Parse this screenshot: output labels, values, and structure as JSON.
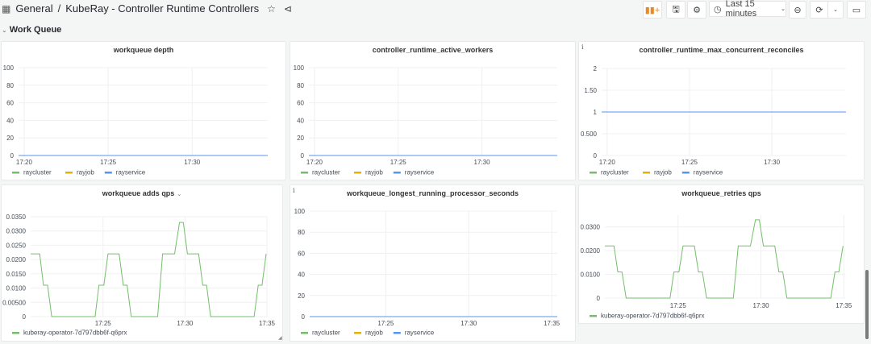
{
  "header": {
    "folder": "General",
    "separator": "/",
    "title": "KubeRay - Controller Runtime Controllers",
    "time_range": "Last 15 minutes",
    "icons": [
      "apps-icon",
      "star-icon",
      "share-icon",
      "add-panel-icon",
      "save-icon",
      "settings-icon",
      "clock-icon",
      "zoom-out-icon",
      "refresh-icon",
      "chevron-down-icon",
      "tv-mode-icon"
    ]
  },
  "row": {
    "title": "Work Queue"
  },
  "colors": {
    "raycluster": "#73BF69",
    "rayjob": "#E0B400",
    "rayservice": "#5794F2",
    "kuberay-operator-7d797dbb6f-q6prx": "#73BF69"
  },
  "panels": [
    {
      "title": "workqueue depth",
      "info": false,
      "menu": false
    },
    {
      "title": "controller_runtime_active_workers",
      "info": false,
      "menu": false
    },
    {
      "title": "controller_runtime_max_concurrent_reconciles",
      "info": true,
      "menu": false
    },
    {
      "title": "workqueue adds qps",
      "info": false,
      "menu": true
    },
    {
      "title": "workqueue_longest_running_processor_seconds",
      "info": true,
      "menu": false
    },
    {
      "title": "workqueue_retries qps",
      "info": false,
      "menu": false
    }
  ],
  "info_glyph": "i",
  "chart_data": [
    {
      "type": "line",
      "title": "workqueue depth",
      "xlim": [
        "17:19:40",
        "17:34:30"
      ],
      "ylim": [
        0,
        100
      ],
      "yticks": [
        0,
        20,
        40,
        60,
        80,
        100
      ],
      "ytick_labels": [
        "0",
        "20",
        "40",
        "60",
        "80",
        "100"
      ],
      "xticks": [
        "17:20",
        "17:25",
        "17:30"
      ],
      "grid": true,
      "legend": "bottom-left",
      "series": [
        {
          "name": "raycluster",
          "points": [
            [
              "17:19:40",
              0
            ],
            [
              "17:34:30",
              0
            ]
          ]
        },
        {
          "name": "rayjob",
          "points": [
            [
              "17:19:40",
              0
            ],
            [
              "17:34:30",
              0
            ]
          ]
        },
        {
          "name": "rayservice",
          "points": [
            [
              "17:19:40",
              0
            ],
            [
              "17:34:30",
              0
            ]
          ]
        }
      ]
    },
    {
      "type": "line",
      "title": "controller_runtime_active_workers",
      "xlim": [
        "17:19:40",
        "17:34:30"
      ],
      "ylim": [
        0,
        100
      ],
      "yticks": [
        0,
        20,
        40,
        60,
        80,
        100
      ],
      "ytick_labels": [
        "0",
        "20",
        "40",
        "60",
        "80",
        "100"
      ],
      "xticks": [
        "17:20",
        "17:25",
        "17:30"
      ],
      "grid": true,
      "legend": "bottom-left",
      "series": [
        {
          "name": "raycluster",
          "points": [
            [
              "17:19:40",
              0
            ],
            [
              "17:34:30",
              0
            ]
          ]
        },
        {
          "name": "rayjob",
          "points": [
            [
              "17:19:40",
              0
            ],
            [
              "17:34:30",
              0
            ]
          ]
        },
        {
          "name": "rayservice",
          "points": [
            [
              "17:19:40",
              0
            ],
            [
              "17:34:30",
              0
            ]
          ]
        }
      ]
    },
    {
      "type": "line",
      "title": "controller_runtime_max_concurrent_reconciles",
      "xlim": [
        "17:19:40",
        "17:34:30"
      ],
      "ylim": [
        0,
        2
      ],
      "yticks": [
        0,
        0.5,
        1,
        1.5,
        2
      ],
      "ytick_labels": [
        "0",
        "0.500",
        "1",
        "1.50",
        "2"
      ],
      "xticks": [
        "17:20",
        "17:25",
        "17:30"
      ],
      "grid": true,
      "legend": "bottom-left",
      "series": [
        {
          "name": "raycluster",
          "points": [
            [
              "17:19:40",
              1
            ],
            [
              "17:34:30",
              1
            ]
          ]
        },
        {
          "name": "rayjob",
          "points": [
            [
              "17:19:40",
              1
            ],
            [
              "17:34:30",
              1
            ]
          ]
        },
        {
          "name": "rayservice",
          "points": [
            [
              "17:19:40",
              1
            ],
            [
              "17:34:30",
              1
            ]
          ]
        }
      ]
    },
    {
      "type": "line",
      "title": "workqueue adds qps",
      "xlim": [
        "17:20:35",
        "17:35:00"
      ],
      "ylim": [
        0,
        0.035
      ],
      "yticks": [
        0,
        0.005,
        0.01,
        0.015,
        0.02,
        0.025,
        0.03,
        0.035
      ],
      "ytick_labels": [
        "0",
        "0.00500",
        "0.0100",
        "0.0150",
        "0.0200",
        "0.0250",
        "0.0300",
        "0.0350"
      ],
      "xticks": [
        "17:25",
        "17:30",
        "17:35"
      ],
      "grid": true,
      "legend": "bottom-left",
      "series": [
        {
          "name": "kuberay-operator-7d797dbb6f-q6prx",
          "points": [
            [
              "17:20:35",
              0.022
            ],
            [
              "17:21:08",
              0.022
            ],
            [
              "17:21:22",
              0.011
            ],
            [
              "17:21:37",
              0.011
            ],
            [
              "17:21:52",
              0
            ],
            [
              "17:24:31",
              0
            ],
            [
              "17:24:45",
              0.011
            ],
            [
              "17:25:03",
              0.011
            ],
            [
              "17:25:18",
              0.022
            ],
            [
              "17:25:59",
              0.022
            ],
            [
              "17:26:14",
              0.011
            ],
            [
              "17:26:28",
              0.011
            ],
            [
              "17:26:43",
              0
            ],
            [
              "17:28:20",
              0
            ],
            [
              "17:28:38",
              0.022
            ],
            [
              "17:29:22",
              0.022
            ],
            [
              "17:29:40",
              0.033
            ],
            [
              "17:29:54",
              0.033
            ],
            [
              "17:30:09",
              0.022
            ],
            [
              "17:30:50",
              0.022
            ],
            [
              "17:31:05",
              0.011
            ],
            [
              "17:31:19",
              0.011
            ],
            [
              "17:31:34",
              0
            ],
            [
              "17:34:13",
              0
            ],
            [
              "17:34:28",
              0.011
            ],
            [
              "17:34:42",
              0.011
            ],
            [
              "17:34:57",
              0.022
            ]
          ]
        }
      ]
    },
    {
      "type": "line",
      "title": "workqueue_longest_running_processor_seconds",
      "xlim": [
        "17:20:25",
        "17:35:20"
      ],
      "ylim": [
        0,
        100
      ],
      "yticks": [
        0,
        20,
        40,
        60,
        80,
        100
      ],
      "ytick_labels": [
        "0",
        "20",
        "40",
        "60",
        "80",
        "100"
      ],
      "xticks": [
        "17:25",
        "17:30",
        "17:35"
      ],
      "grid": true,
      "legend": "bottom-left",
      "series": [
        {
          "name": "raycluster",
          "points": [
            [
              "17:20:25",
              0
            ],
            [
              "17:35:20",
              0
            ]
          ]
        },
        {
          "name": "rayjob",
          "points": [
            [
              "17:20:25",
              0
            ],
            [
              "17:35:20",
              0
            ]
          ]
        },
        {
          "name": "rayservice",
          "points": [
            [
              "17:20:25",
              0
            ],
            [
              "17:35:20",
              0
            ]
          ]
        }
      ]
    },
    {
      "type": "line",
      "title": "workqueue_retries qps",
      "xlim": [
        "17:20:35",
        "17:35:05"
      ],
      "ylim": [
        0,
        0.035
      ],
      "yticks": [
        0,
        0.01,
        0.02,
        0.03
      ],
      "ytick_labels": [
        "0",
        "0.0100",
        "0.0200",
        "0.0300"
      ],
      "xticks": [
        "17:25",
        "17:30",
        "17:35"
      ],
      "grid": true,
      "legend": "bottom-left",
      "series": [
        {
          "name": "kuberay-operator-7d797dbb6f-q6prx",
          "points": [
            [
              "17:20:35",
              0.022
            ],
            [
              "17:21:08",
              0.022
            ],
            [
              "17:21:22",
              0.011
            ],
            [
              "17:21:37",
              0.011
            ],
            [
              "17:21:52",
              0
            ],
            [
              "17:24:31",
              0
            ],
            [
              "17:24:45",
              0.011
            ],
            [
              "17:25:03",
              0.011
            ],
            [
              "17:25:18",
              0.022
            ],
            [
              "17:25:59",
              0.022
            ],
            [
              "17:26:14",
              0.011
            ],
            [
              "17:26:28",
              0.011
            ],
            [
              "17:26:43",
              0
            ],
            [
              "17:28:20",
              0
            ],
            [
              "17:28:38",
              0.022
            ],
            [
              "17:29:22",
              0.022
            ],
            [
              "17:29:40",
              0.033
            ],
            [
              "17:29:54",
              0.033
            ],
            [
              "17:30:09",
              0.022
            ],
            [
              "17:30:50",
              0.022
            ],
            [
              "17:31:05",
              0.011
            ],
            [
              "17:31:19",
              0.011
            ],
            [
              "17:31:34",
              0
            ],
            [
              "17:34:13",
              0
            ],
            [
              "17:34:28",
              0.011
            ],
            [
              "17:34:42",
              0.011
            ],
            [
              "17:34:57",
              0.022
            ]
          ]
        }
      ]
    }
  ]
}
